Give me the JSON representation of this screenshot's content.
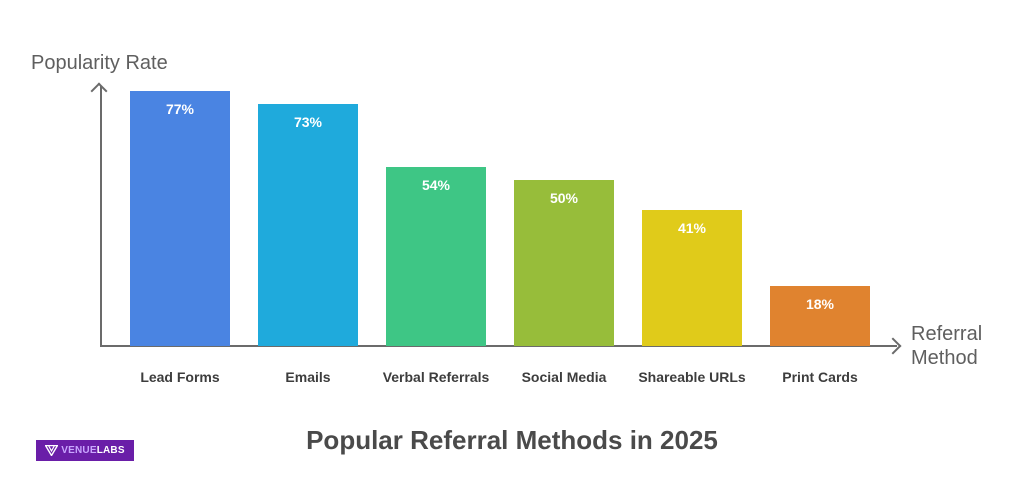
{
  "chart_data": {
    "type": "bar",
    "title": "Popular Referral Methods in 2025",
    "xlabel": "Referral Method",
    "ylabel": "Popularity Rate",
    "categories": [
      "Lead Forms",
      "Emails",
      "Verbal Referrals",
      "Social Media",
      "Shareable URLs",
      "Print Cards"
    ],
    "values": [
      77,
      73,
      54,
      50,
      41,
      18
    ],
    "value_labels": [
      "77%",
      "73%",
      "54%",
      "50%",
      "41%",
      "18%"
    ],
    "colors": [
      "#4a84e2",
      "#1faadc",
      "#3ec685",
      "#97bd3a",
      "#e0cb1a",
      "#e0832f"
    ],
    "unit": "%",
    "ylim": [
      0,
      77
    ],
    "grid": false,
    "legend": "none"
  },
  "branding": {
    "logo_text_1": "VENUE",
    "logo_text_2": "LABS",
    "logo_color": "#6a1ea8"
  },
  "axes": {
    "y_label_line": "Popularity Rate",
    "x_label_line1": "Referral",
    "x_label_line2": "Method"
  }
}
